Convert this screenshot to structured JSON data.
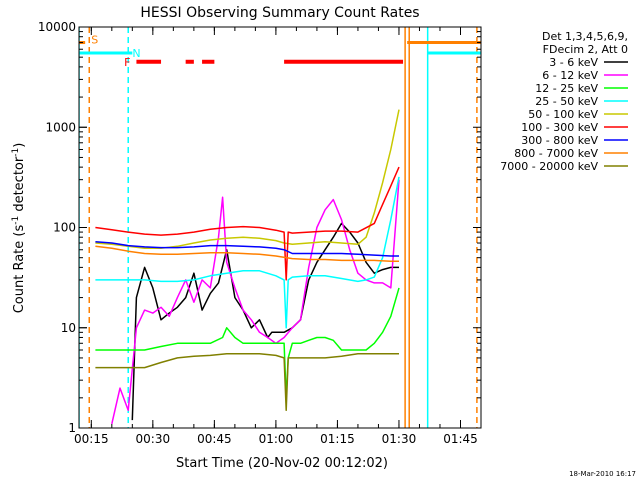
{
  "chart_data": {
    "type": "line",
    "title": "HESSI Observing Summary Count Rates",
    "xlabel": "Start Time (20-Nov-02 00:12:02)",
    "ylabel_prefix": "Count Rate (s",
    "ylabel_sup": "-1",
    "ylabel_mid": " detector",
    "ylabel_sup2": "-1",
    "ylabel_suffix": ")",
    "x_unit": "minutes after 00:12:02",
    "xlim": [
      0,
      98
    ],
    "ylim": [
      1,
      10000
    ],
    "yscale": "log",
    "grid": false,
    "legend_position": "right",
    "x_ticks": [
      {
        "label": "00:15",
        "value": 3
      },
      {
        "label": "00:30",
        "value": 18
      },
      {
        "label": "00:45",
        "value": 33
      },
      {
        "label": "01:00",
        "value": 48
      },
      {
        "label": "01:15",
        "value": 63
      },
      {
        "label": "01:30",
        "value": 78
      },
      {
        "label": "01:45",
        "value": 93
      }
    ],
    "y_ticks": [
      {
        "label": "1",
        "value": 1
      },
      {
        "label": "10",
        "value": 10
      },
      {
        "label": "100",
        "value": 100
      },
      {
        "label": "1000",
        "value": 1000
      },
      {
        "label": "10000",
        "value": 10000
      }
    ],
    "legend_header": [
      "Det 1,3,4,5,6,9,",
      "FDecim 2, Att 0"
    ],
    "series": [
      {
        "name": "3 - 6 keV",
        "color": "#000000",
        "x": [
          13,
          14,
          16,
          18,
          20,
          22,
          24,
          26,
          28,
          30,
          32,
          34,
          36,
          38,
          40,
          42,
          44,
          46,
          47,
          48,
          50,
          52,
          54,
          56,
          58,
          60,
          62,
          64,
          66,
          68,
          70,
          72,
          74,
          76,
          78
        ],
        "y": [
          1.2,
          20,
          40,
          25,
          12,
          14,
          16,
          20,
          35,
          15,
          22,
          28,
          60,
          20,
          15,
          10,
          12,
          8,
          9,
          9,
          9,
          10,
          12,
          30,
          45,
          60,
          80,
          110,
          90,
          70,
          45,
          35,
          38,
          40,
          40
        ]
      },
      {
        "name": "6 - 12 keV",
        "color": "#ff00ff",
        "x": [
          8,
          10,
          12,
          14,
          16,
          18,
          20,
          22,
          24,
          26,
          28,
          30,
          32,
          34,
          35,
          36,
          38,
          40,
          42,
          44,
          46,
          48,
          50,
          52,
          54,
          56,
          58,
          60,
          62,
          64,
          66,
          68,
          70,
          72,
          74,
          76,
          78
        ],
        "y": [
          1.1,
          2.5,
          1.5,
          10,
          15,
          14,
          16,
          13,
          20,
          30,
          18,
          30,
          25,
          80,
          200,
          45,
          25,
          15,
          12,
          9,
          8,
          7,
          8,
          10,
          12,
          40,
          100,
          150,
          190,
          120,
          60,
          35,
          30,
          28,
          28,
          25,
          300
        ]
      },
      {
        "name": "12 - 25 keV",
        "color": "#00ff00",
        "x": [
          4,
          8,
          12,
          16,
          20,
          24,
          28,
          32,
          35,
          36,
          38,
          40,
          44,
          48,
          50,
          50.5,
          51,
          52,
          54,
          56,
          58,
          60,
          62,
          64,
          66,
          68,
          70,
          72,
          74,
          76,
          78
        ],
        "y": [
          6,
          6,
          6,
          6,
          6.5,
          7,
          7,
          7,
          8,
          10,
          8,
          7,
          7,
          7,
          7,
          2,
          5,
          7,
          7,
          7.5,
          8,
          8,
          7.5,
          6,
          6,
          6,
          6,
          7,
          9,
          13,
          25
        ]
      },
      {
        "name": "25 - 50 keV",
        "color": "#00ffff",
        "x": [
          4,
          8,
          12,
          16,
          20,
          24,
          28,
          32,
          36,
          40,
          44,
          48,
          50,
          50.5,
          51,
          52,
          56,
          60,
          64,
          68,
          70,
          72,
          74,
          76,
          78
        ],
        "y": [
          30,
          30,
          30,
          30,
          29,
          29,
          30,
          33,
          35,
          37,
          37,
          33,
          30,
          10,
          30,
          32,
          33,
          33,
          31,
          29,
          30,
          32,
          50,
          120,
          320
        ]
      },
      {
        "name": "50 - 100 keV",
        "color": "#c8c800",
        "x": [
          4,
          8,
          12,
          16,
          20,
          24,
          28,
          32,
          36,
          40,
          44,
          48,
          50,
          52,
          56,
          60,
          64,
          68,
          70,
          72,
          74,
          76,
          78
        ],
        "y": [
          70,
          68,
          65,
          62,
          62,
          65,
          70,
          75,
          78,
          80,
          78,
          74,
          70,
          68,
          70,
          72,
          70,
          68,
          80,
          140,
          280,
          600,
          1500
        ]
      },
      {
        "name": "100 - 300 keV",
        "color": "#ff0000",
        "x": [
          4,
          8,
          12,
          16,
          20,
          24,
          28,
          32,
          36,
          40,
          44,
          48,
          50,
          50.5,
          51,
          52,
          56,
          60,
          64,
          68,
          72,
          74,
          76,
          78
        ],
        "y": [
          100,
          95,
          90,
          86,
          84,
          86,
          90,
          96,
          100,
          102,
          100,
          94,
          90,
          30,
          90,
          88,
          90,
          92,
          92,
          90,
          110,
          170,
          260,
          400
        ]
      },
      {
        "name": "300 - 800 keV",
        "color": "#0000ff",
        "x": [
          4,
          8,
          12,
          16,
          20,
          24,
          28,
          32,
          36,
          40,
          44,
          48,
          50,
          52,
          56,
          60,
          64,
          68,
          72,
          76,
          78
        ],
        "y": [
          72,
          70,
          66,
          64,
          63,
          63,
          64,
          66,
          66,
          65,
          64,
          62,
          60,
          55,
          55,
          55,
          55,
          54,
          53,
          52,
          52
        ]
      },
      {
        "name": "800 - 7000 keV",
        "color": "#ff8000",
        "x": [
          4,
          8,
          12,
          16,
          20,
          24,
          28,
          32,
          36,
          40,
          44,
          48,
          52,
          56,
          60,
          64,
          68,
          72,
          76,
          78
        ],
        "y": [
          65,
          62,
          58,
          55,
          54,
          54,
          55,
          56,
          56,
          55,
          54,
          52,
          49,
          48,
          48,
          47,
          47,
          47,
          46,
          46
        ]
      },
      {
        "name": "7000 - 20000 keV",
        "color": "#808000",
        "x": [
          4,
          8,
          12,
          16,
          20,
          24,
          28,
          32,
          36,
          40,
          44,
          48,
          50,
          50.5,
          51,
          52,
          56,
          60,
          64,
          68,
          72,
          76,
          78
        ],
        "y": [
          4,
          4,
          4,
          4,
          4.5,
          5,
          5.2,
          5.3,
          5.5,
          5.5,
          5.5,
          5.3,
          5,
          1.5,
          5,
          5,
          5,
          5,
          5.2,
          5.5,
          5.5,
          5.5,
          5.5
        ]
      }
    ],
    "level_steps": [
      {
        "name": "orange level",
        "color": "#ff8000",
        "segments": [
          {
            "x0": 0,
            "x1": 1.5,
            "y": 7000
          },
          {
            "x0": 80,
            "x1": 98,
            "y": 7000
          }
        ]
      },
      {
        "name": "cyan level",
        "color": "#00ffff",
        "segments": [
          {
            "x0": 0,
            "x1": 13,
            "y": 5500
          },
          {
            "x0": 85,
            "x1": 98,
            "y": 5500
          }
        ]
      }
    ],
    "flag_bars": {
      "label": "F",
      "label_x": 11,
      "y": 4500,
      "color": "#ff0000",
      "segments": [
        {
          "x0": 14,
          "x1": 20
        },
        {
          "x0": 26,
          "x1": 28
        },
        {
          "x0": 30,
          "x1": 33
        },
        {
          "x0": 50,
          "x1": 79
        }
      ]
    },
    "vertical_markers": [
      {
        "x": 0,
        "color": "#00ffff",
        "style": "solid"
      },
      {
        "x": 2.5,
        "color": "#ff8000",
        "style": "dashed"
      },
      {
        "x": 12,
        "color": "#00ffff",
        "style": "dashed"
      },
      {
        "x": 79.5,
        "color": "#ff8000",
        "style": "solid"
      },
      {
        "x": 80.5,
        "color": "#ff8000",
        "style": "solid"
      },
      {
        "x": 85,
        "color": "#00ffff",
        "style": "solid"
      },
      {
        "x": 97,
        "color": "#ff8000",
        "style": "dashed"
      }
    ],
    "annotations": [
      {
        "text": "S",
        "x": 3,
        "y": 7500,
        "color": "#ff8000"
      },
      {
        "text": "N",
        "x": 13,
        "y": 5500,
        "color": "#00ffff"
      }
    ],
    "footer_date": "18-Mar-2010 16:17"
  }
}
